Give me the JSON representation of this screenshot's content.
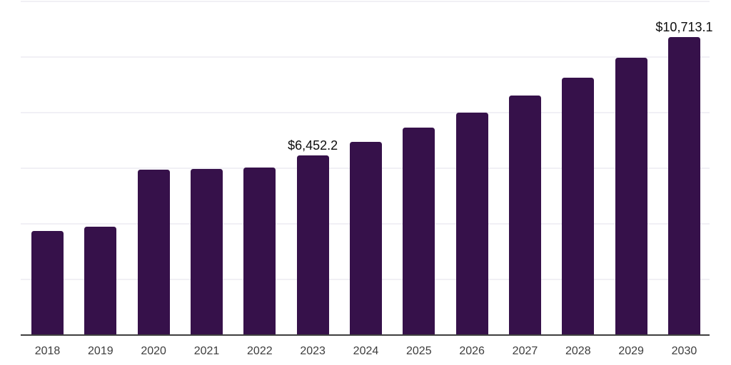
{
  "chart_data": {
    "type": "bar",
    "title": "",
    "xlabel": "",
    "ylabel": "",
    "categories": [
      "2018",
      "2019",
      "2020",
      "2021",
      "2022",
      "2023",
      "2024",
      "2025",
      "2026",
      "2027",
      "2028",
      "2029",
      "2030"
    ],
    "values": [
      3755,
      3895,
      5955,
      5980,
      6020,
      6452.2,
      6940,
      7460,
      8000,
      8610,
      9250,
      9970,
      10713.1
    ],
    "labeled_points": [
      {
        "category": "2023",
        "text": "$6,452.2",
        "value": 6452.2
      },
      {
        "category": "2030",
        "text": "$10,713.1",
        "value": 10713.1
      }
    ],
    "ylim": [
      0,
      12000
    ],
    "gridline_values": [
      2000,
      4000,
      6000,
      8000,
      10000,
      12000
    ],
    "grid_on": true,
    "legend_position": "none",
    "colors": {
      "bar": "#36114a",
      "gridline": "#f1f0f5",
      "axis_line": "#3f3f3f",
      "tick_label": "#3d3d3d",
      "data_label": "#0d0d0d",
      "background": "#ffffff"
    }
  }
}
